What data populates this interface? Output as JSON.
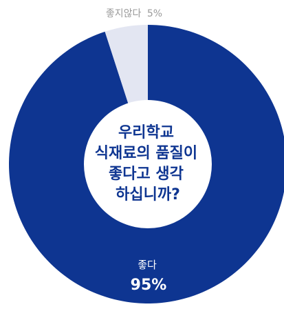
{
  "chart_data": {
    "type": "pie",
    "style": "donut",
    "center_text": [
      "우리학교",
      "식재료의 품질이",
      "좋다고 생각",
      "하십니까?"
    ],
    "slices": [
      {
        "label": "좋다",
        "value": 95,
        "value_text": "95%",
        "color": "#0e3591"
      },
      {
        "label": "좋지않다",
        "value": 5,
        "value_text": "5%",
        "color": "#e3e6f2"
      }
    ],
    "colors": {
      "center_text": "#0e3591",
      "center_fill": "#ffffff",
      "minor_label": "#9a9a9a",
      "major_label": "#ffffff"
    }
  }
}
